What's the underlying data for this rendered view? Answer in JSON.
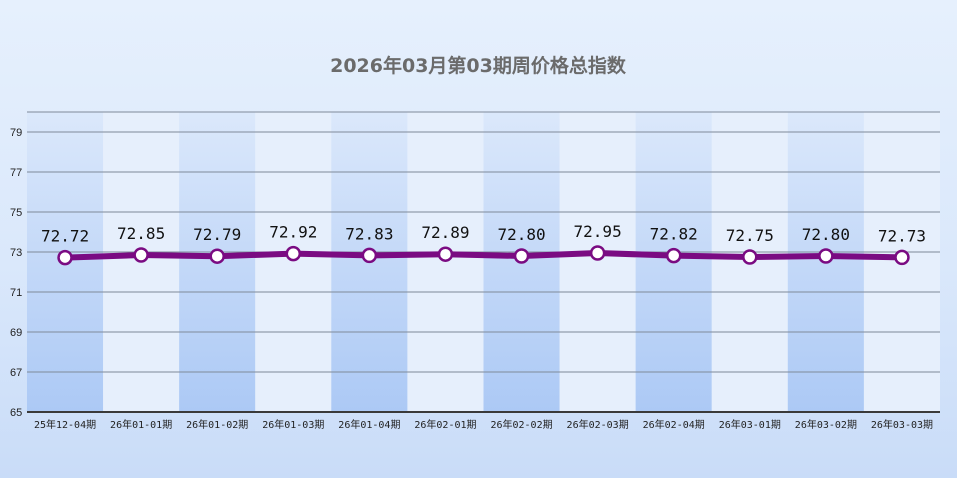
{
  "chart_data": {
    "type": "line",
    "title": "2026年03月第03期周价格总指数",
    "categories": [
      "25年12-04期",
      "26年01-01期",
      "26年01-02期",
      "26年01-03期",
      "26年01-04期",
      "26年02-01期",
      "26年02-02期",
      "26年02-03期",
      "26年02-04期",
      "26年03-01期",
      "26年03-02期",
      "26年03-03期"
    ],
    "values": [
      72.72,
      72.85,
      72.79,
      72.92,
      72.83,
      72.89,
      72.8,
      72.95,
      72.82,
      72.75,
      72.8,
      72.73
    ],
    "data_labels": [
      "72.72",
      "72.85",
      "72.79",
      "72.92",
      "72.83",
      "72.89",
      "72.80",
      "72.95",
      "72.82",
      "72.75",
      "72.80",
      "72.73"
    ],
    "y_ticks": [
      "65",
      "67",
      "69",
      "71",
      "73",
      "75",
      "77",
      "79"
    ],
    "ylim": [
      65,
      80
    ],
    "grid": true,
    "legend": "none",
    "colors": {
      "line": "#7a0b82",
      "marker_fill": "#ffffff",
      "gridline": "#7f8a99",
      "band_dark": "#b7d3f8",
      "band_light": "#e6effc"
    }
  }
}
